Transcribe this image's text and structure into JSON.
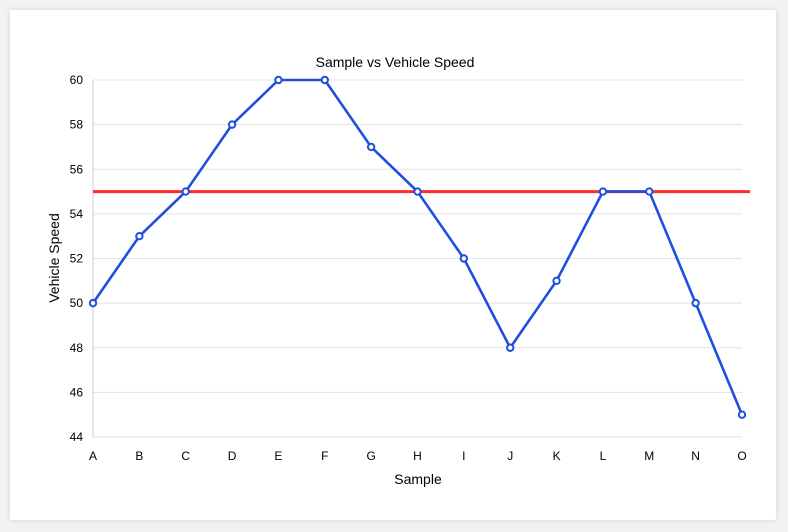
{
  "chart_data": {
    "type": "line",
    "title": "Sample vs Vehicle Speed",
    "xlabel": "Sample",
    "ylabel": "Vehicle Speed",
    "categories": [
      "A",
      "B",
      "C",
      "D",
      "E",
      "F",
      "G",
      "H",
      "I",
      "J",
      "K",
      "L",
      "M",
      "N",
      "O"
    ],
    "series": [
      {
        "values": [
          50,
          53,
          55,
          58,
          60,
          60,
          57,
          55,
          52,
          48,
          51,
          55,
          55,
          50,
          45
        ],
        "color": "#1f4fe0"
      }
    ],
    "reference_line": {
      "value": 55,
      "color": "#ff2a2a"
    },
    "ylim": [
      44,
      60
    ],
    "yticks": [
      44,
      46,
      48,
      50,
      52,
      54,
      56,
      58,
      60
    ],
    "grid": true,
    "legend": "none"
  }
}
